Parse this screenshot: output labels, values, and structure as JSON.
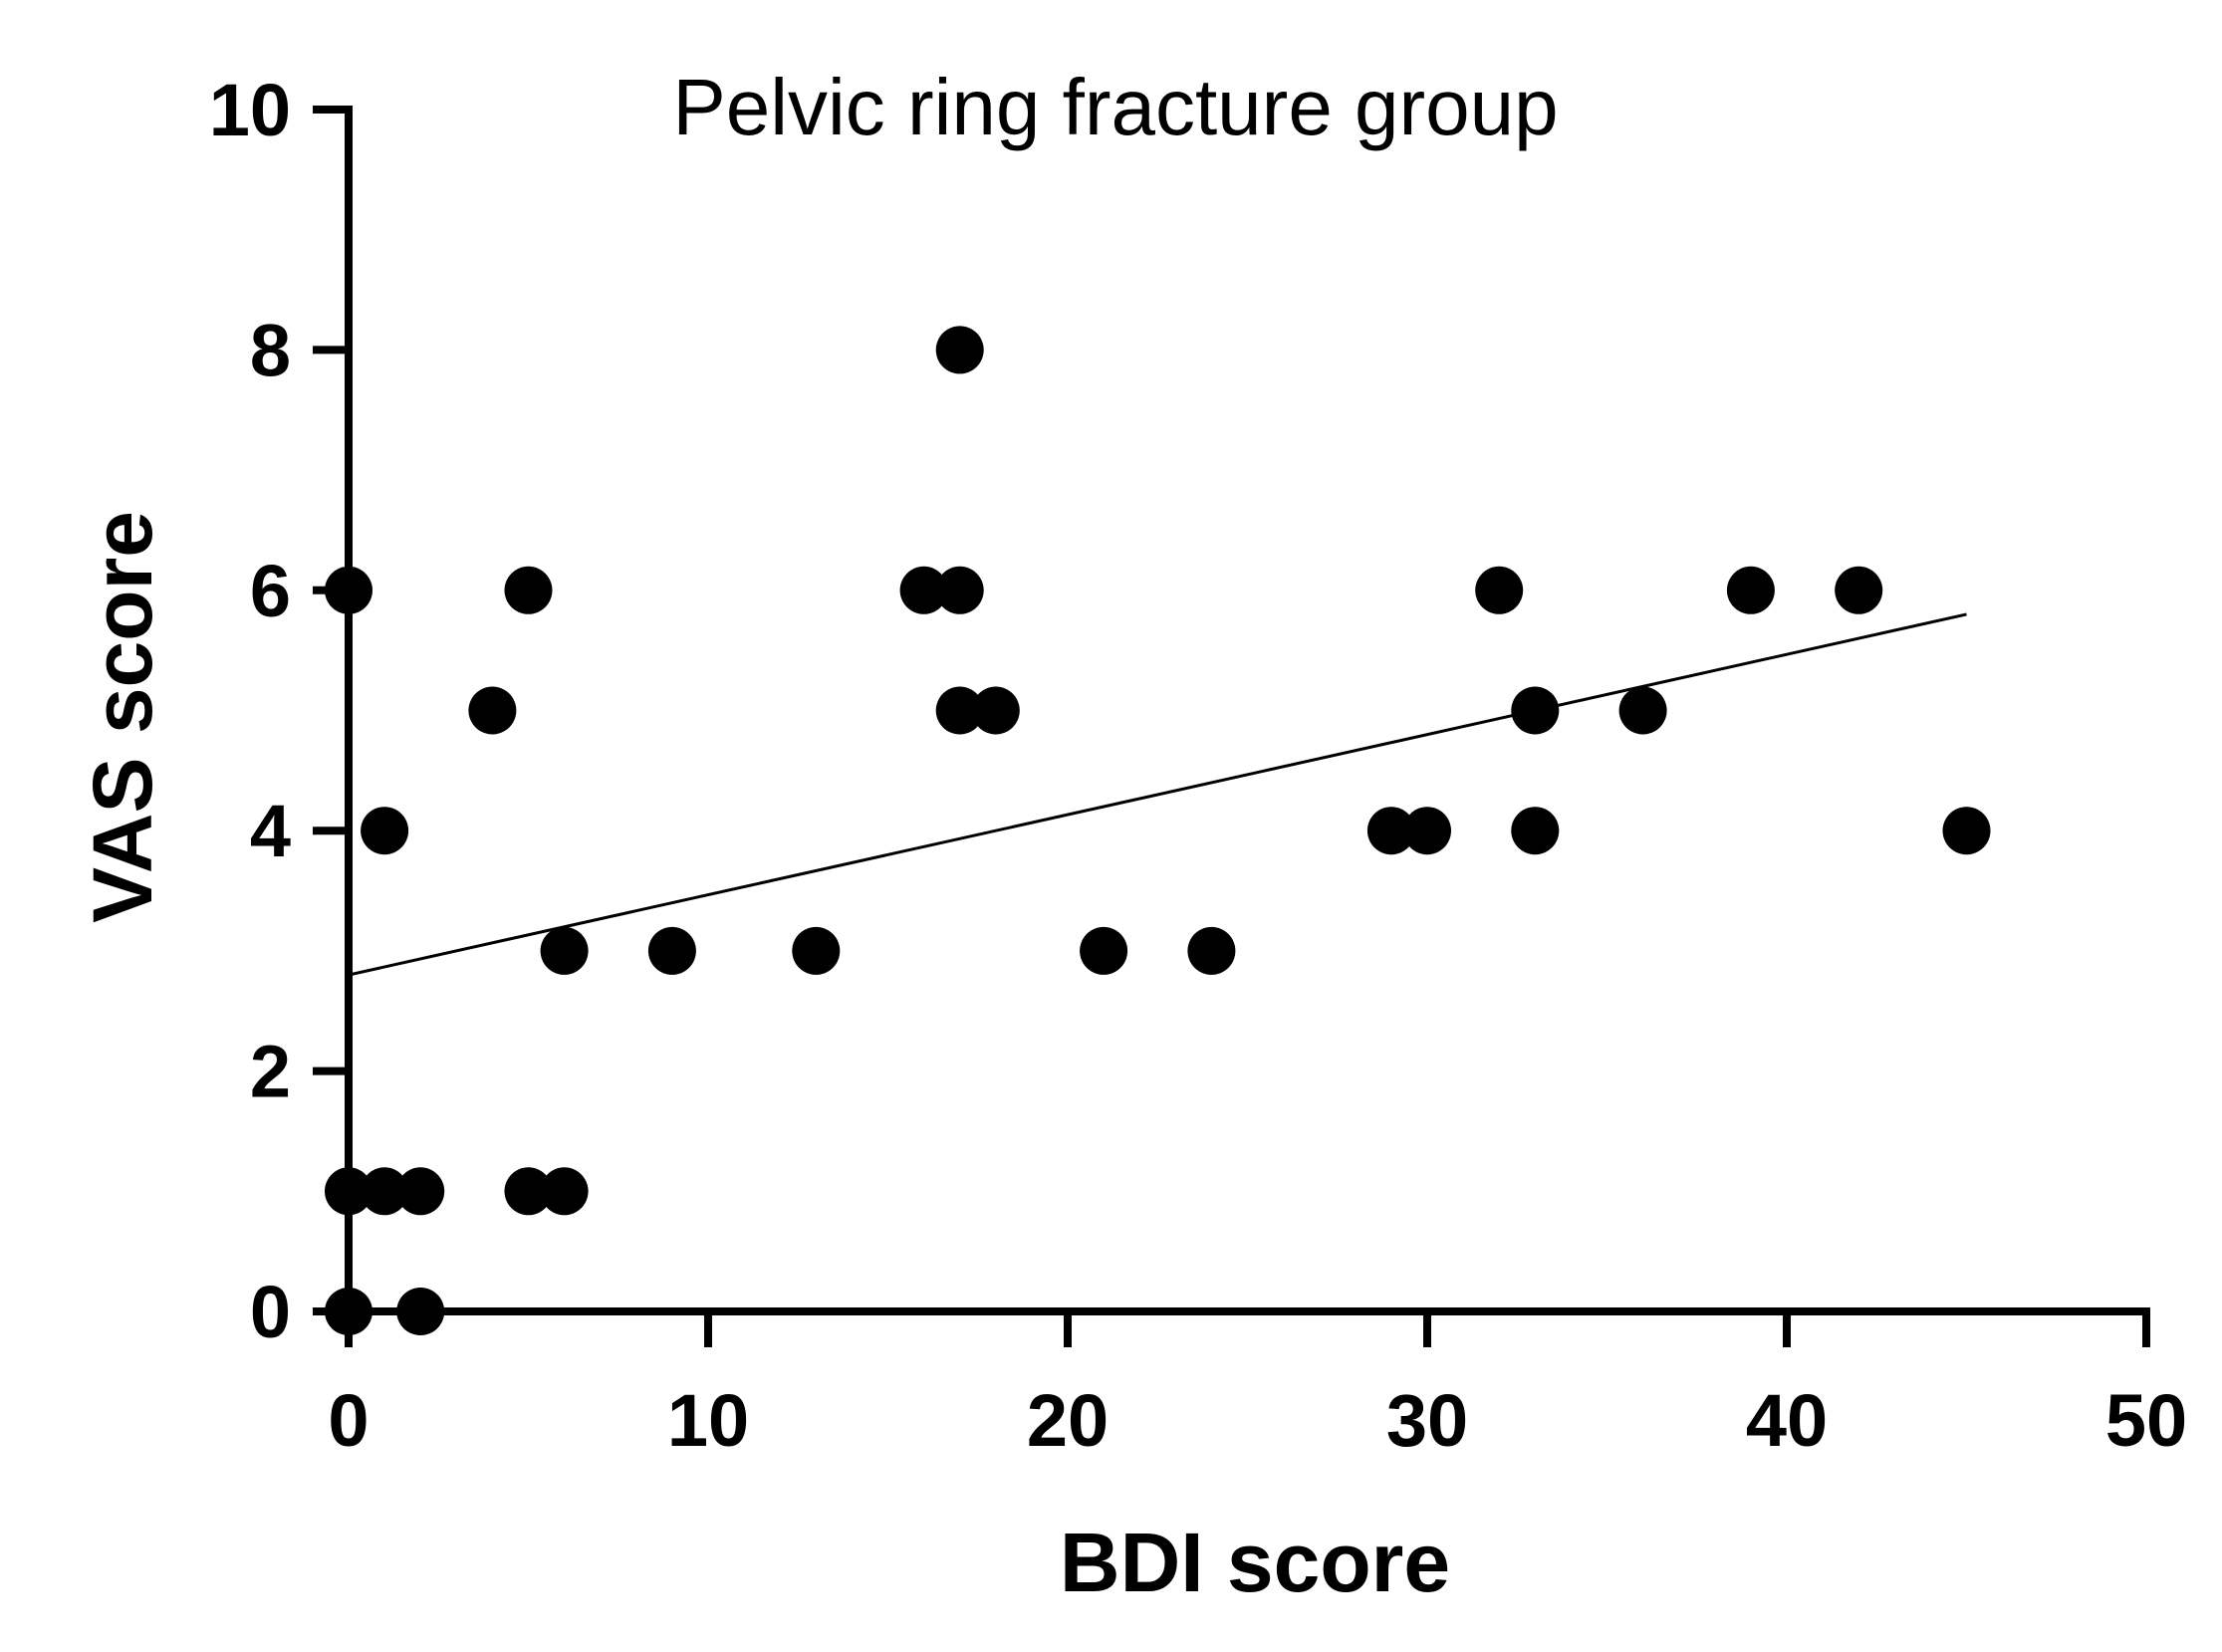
{
  "chart_data": {
    "type": "scatter",
    "title": "Pelvic ring fracture group",
    "xlabel": "BDI score",
    "ylabel": "VAS score",
    "xlim": [
      0,
      50
    ],
    "ylim": [
      0,
      10
    ],
    "xticks": [
      0,
      10,
      20,
      30,
      40,
      50
    ],
    "yticks": [
      0,
      2,
      4,
      6,
      8,
      10
    ],
    "grid": false,
    "point_color": "#000000",
    "points": [
      {
        "x": 0,
        "y": 6
      },
      {
        "x": 0,
        "y": 1
      },
      {
        "x": 0,
        "y": 0
      },
      {
        "x": 1,
        "y": 4
      },
      {
        "x": 1,
        "y": 1
      },
      {
        "x": 2,
        "y": 1
      },
      {
        "x": 2,
        "y": 0
      },
      {
        "x": 4,
        "y": 5
      },
      {
        "x": 5,
        "y": 6
      },
      {
        "x": 5,
        "y": 1
      },
      {
        "x": 6,
        "y": 3
      },
      {
        "x": 6,
        "y": 1
      },
      {
        "x": 9,
        "y": 3
      },
      {
        "x": 13,
        "y": 3
      },
      {
        "x": 16,
        "y": 6
      },
      {
        "x": 17,
        "y": 8
      },
      {
        "x": 17,
        "y": 6
      },
      {
        "x": 17,
        "y": 5
      },
      {
        "x": 18,
        "y": 5
      },
      {
        "x": 21,
        "y": 3
      },
      {
        "x": 24,
        "y": 3
      },
      {
        "x": 29,
        "y": 4
      },
      {
        "x": 30,
        "y": 4
      },
      {
        "x": 32,
        "y": 6
      },
      {
        "x": 33,
        "y": 5
      },
      {
        "x": 33,
        "y": 4
      },
      {
        "x": 36,
        "y": 5
      },
      {
        "x": 39,
        "y": 6
      },
      {
        "x": 42,
        "y": 6
      },
      {
        "x": 45,
        "y": 4
      }
    ],
    "fit_line": {
      "x": [
        0,
        45
      ],
      "y": [
        2.8,
        5.8
      ]
    }
  }
}
